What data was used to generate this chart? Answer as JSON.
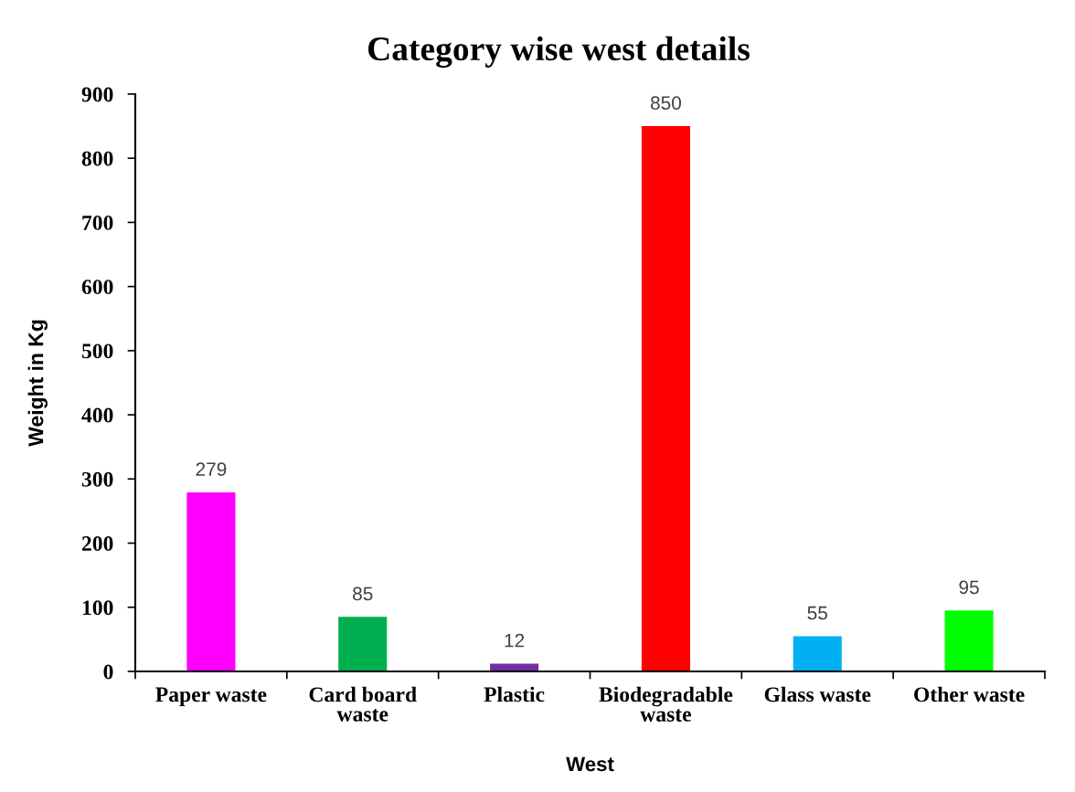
{
  "chart_data": {
    "type": "bar",
    "title": "Category wise west details",
    "xlabel": "West",
    "ylabel": "Weight in Kg",
    "categories": [
      "Paper waste",
      "Card board waste",
      "Plastic",
      "Biodegradable waste",
      "Glass waste",
      "Other waste"
    ],
    "values": [
      279,
      85,
      12,
      850,
      55,
      95
    ],
    "colors": [
      "#ff00ff",
      "#00b050",
      "#7030a0",
      "#ff0000",
      "#00b0f0",
      "#00ff00"
    ],
    "ylim": [
      0,
      900
    ],
    "yticks": [
      0,
      100,
      200,
      300,
      400,
      500,
      600,
      700,
      800,
      900
    ],
    "data_labels": true
  }
}
